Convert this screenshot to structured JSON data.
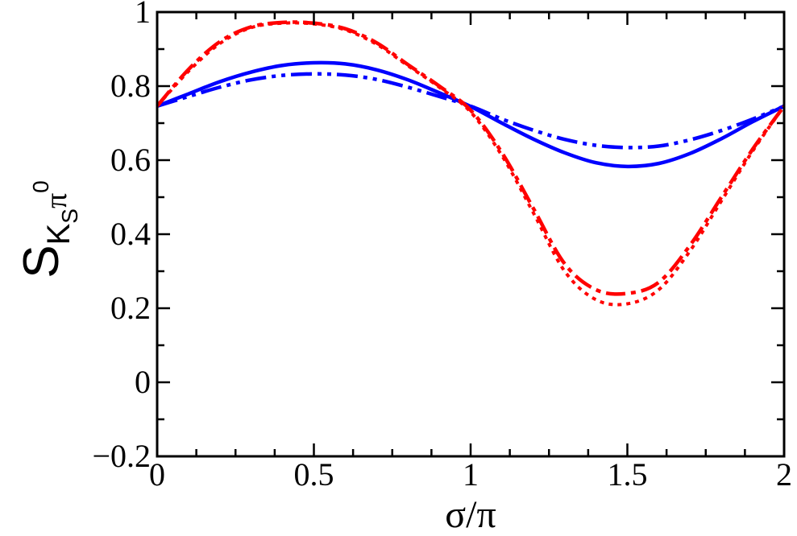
{
  "chart_data": {
    "type": "line",
    "title": "",
    "xlabel": "σ/π",
    "ylabel": {
      "main": "S",
      "sub": "K",
      "subsub": "S",
      "pi": "π",
      "sup": "0"
    },
    "xlim": [
      0,
      2
    ],
    "ylim": [
      -0.2,
      1.0
    ],
    "grid": false,
    "x_ticks": [
      {
        "value": 0,
        "label": "0"
      },
      {
        "value": 0.5,
        "label": "0.5"
      },
      {
        "value": 1,
        "label": "1"
      },
      {
        "value": 1.5,
        "label": "1.5"
      },
      {
        "value": 2,
        "label": "2"
      }
    ],
    "y_ticks": [
      {
        "value": -0.2,
        "label": "−0.2"
      },
      {
        "value": 0,
        "label": "0"
      },
      {
        "value": 0.2,
        "label": "0.2"
      },
      {
        "value": 0.4,
        "label": "0.4"
      },
      {
        "value": 0.6,
        "label": "0.6"
      },
      {
        "value": 0.8,
        "label": "0.8"
      },
      {
        "value": 1.0,
        "label": "1"
      }
    ],
    "x": [
      0,
      0.1,
      0.2,
      0.3,
      0.4,
      0.5,
      0.6,
      0.7,
      0.8,
      0.9,
      1.0,
      1.1,
      1.2,
      1.3,
      1.4,
      1.5,
      1.6,
      1.7,
      1.8,
      1.9,
      2.0
    ],
    "series": [
      {
        "name": "blue-solid",
        "color": "#0000ff",
        "style": "solid",
        "values": [
          0.746,
          0.779,
          0.812,
          0.838,
          0.856,
          0.863,
          0.86,
          0.844,
          0.817,
          0.782,
          0.745,
          0.7,
          0.657,
          0.62,
          0.593,
          0.583,
          0.591,
          0.618,
          0.658,
          0.704,
          0.746
        ]
      },
      {
        "name": "blue-dash-dot-dot",
        "color": "#0000ff",
        "style": "dash-dot-dot",
        "values": [
          0.746,
          0.772,
          0.797,
          0.817,
          0.829,
          0.833,
          0.83,
          0.818,
          0.797,
          0.772,
          0.746,
          0.711,
          0.681,
          0.656,
          0.64,
          0.634,
          0.638,
          0.655,
          0.68,
          0.711,
          0.746
        ]
      },
      {
        "name": "red-dash-dot",
        "color": "#ff0000",
        "style": "dash-dot",
        "values": [
          0.746,
          0.845,
          0.92,
          0.96,
          0.972,
          0.97,
          0.955,
          0.917,
          0.858,
          0.8,
          0.735,
          0.62,
          0.47,
          0.32,
          0.25,
          0.24,
          0.27,
          0.37,
          0.5,
          0.63,
          0.746
        ]
      },
      {
        "name": "red-dotted",
        "color": "#ff0000",
        "style": "dotted",
        "values": [
          0.746,
          0.84,
          0.915,
          0.958,
          0.97,
          0.968,
          0.952,
          0.913,
          0.855,
          0.797,
          0.73,
          0.612,
          0.458,
          0.3,
          0.223,
          0.212,
          0.25,
          0.355,
          0.49,
          0.625,
          0.746
        ]
      }
    ]
  }
}
